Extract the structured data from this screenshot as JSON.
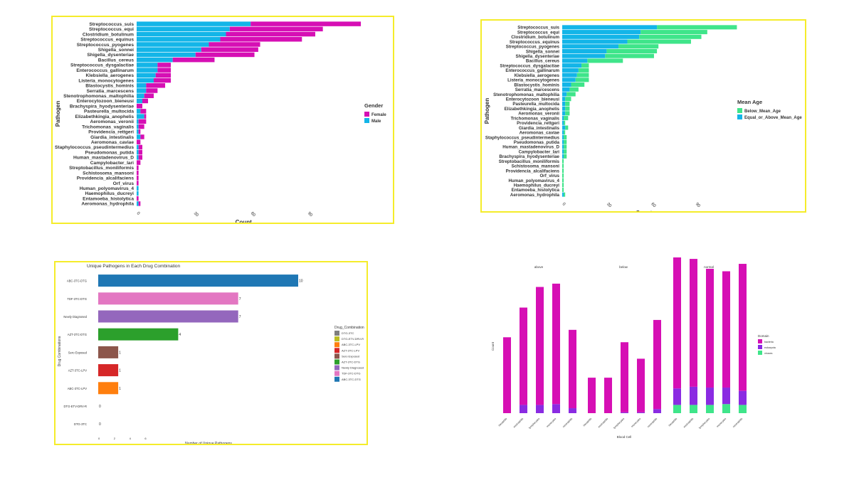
{
  "colors": {
    "female": "#d60fb4",
    "male": "#13b5e8",
    "below_mean_age": "#3fe58a",
    "equal_or_above_mean_age": "#13b5e8",
    "frame": "#f5ec2a",
    "bacteria": "#d60fb4",
    "eukaryota": "#8a2be2",
    "viruses": "#3fe58a"
  },
  "chart_data": [
    {
      "type": "bar",
      "orientation": "horizontal",
      "stacked": true,
      "categories": [
        "Streptococcus_suis",
        "Streptococcus_equi",
        "Clostridium_botulinum",
        "Streptococcus_equinus",
        "Streptococcus_pyogenes",
        "Shigella_sonnei",
        "Shigella_dysenteriae",
        "Bacillus_cereus",
        "Streptococcus_dysgalactiae",
        "Enterococcus_gallinarum",
        "Klebsiella_aerogenes",
        "Listeria_monocytogenes",
        "Blastocystis_hominis",
        "Serratia_marcescens",
        "Stenotrophomonas_maltophilia",
        "Enterocytozoon_bieneusi",
        "Brachyspira_hyodysenteriae",
        "Pasteurella_multocida",
        "Elizabethkingia_anophelis",
        "Aeromonas_veronii",
        "Trichomonas_vaginalis",
        "Providencia_rettgeri",
        "Giardia_intestinalis",
        "Aeromonas_caviae",
        "Staphylococcus_pseudintermedius",
        "Pseudomonas_putida",
        "Human_mastadenovirus_D",
        "Campylobacter_lari",
        "Streptobacillus_moniliformis",
        "Schistosoma_mansoni",
        "Providencia_alcalifaciens",
        "Orf_virus",
        "Human_polyomavirus_4",
        "Haemophilus_ducreyi",
        "Entamoeba_histolytica",
        "Aeromonas_hydrophila"
      ],
      "series": [
        {
          "name": "Male",
          "values": [
            60,
            49,
            47,
            44,
            38,
            34,
            31,
            19,
            11,
            11,
            10,
            9,
            5,
            5,
            4,
            3,
            0,
            2,
            4,
            1,
            1,
            1,
            2,
            0,
            1,
            1,
            1,
            0,
            0,
            0,
            0,
            0,
            1,
            1,
            0,
            1
          ]
        },
        {
          "name": "Female",
          "values": [
            58,
            49,
            47,
            43,
            27,
            30,
            31,
            22,
            7,
            7,
            8,
            9,
            10,
            6,
            5,
            3,
            3,
            3,
            1,
            4,
            3,
            1,
            2,
            2,
            2,
            2,
            2,
            2,
            1,
            1,
            1,
            1,
            0,
            0,
            1,
            1
          ]
        }
      ],
      "xlabel": "Count",
      "ylabel": "Pathogen",
      "xticks": [
        "0",
        "30",
        "60",
        "90"
      ],
      "xlim": [
        0,
        125
      ],
      "legend_title": "Gender",
      "legend_entries": [
        "Female",
        "Male"
      ],
      "legend_position": "right"
    },
    {
      "type": "bar",
      "orientation": "horizontal",
      "stacked": true,
      "categories": [
        "Streptococcus_suis",
        "Streptococcus_equi",
        "Clostridium_botulinum",
        "Streptococcus_equinus",
        "Streptococcus_pyogenes",
        "Shigella_sonnei",
        "Shigella_dysenteriae",
        "Bacillus_cereus",
        "Streptococcus_dysgalactiae",
        "Enterococcus_gallinarum",
        "Klebsiella_aerogenes",
        "Listeria_monocytogenes",
        "Blastocystis_hominis",
        "Serratia_marcescens",
        "Stenotrophomonas_maltophilia",
        "Enterocytozoon_bieneusi",
        "Pasteurella_multocida",
        "Elizabethkingia_anophelis",
        "Aeromonas_veronii",
        "Trichomonas_vaginalis",
        "Providencia_rettgeri",
        "Giardia_intestinalis",
        "Aeromonas_caviae",
        "Staphylococcus_pseudintermedius",
        "Pseudomonas_putida",
        "Human_mastadenovirus_D",
        "Campylobacter_lari",
        "Brachyspira_hyodysenteriae",
        "Streptobacillus_moniliformis",
        "Schistosoma_mansoni",
        "Providencia_alcalifaciens",
        "Orf_virus",
        "Human_polyomavirus_4",
        "Haemophilus_ducreyi",
        "Entamoeba_histolytica",
        "Aeromonas_hydrophila"
      ],
      "series": [
        {
          "name": "Equal_or_Above_Mean_Age",
          "values": [
            64,
            53,
            52,
            44,
            38,
            30,
            29,
            17,
            13,
            11,
            10,
            9,
            6,
            5,
            3,
            2,
            2,
            2,
            2,
            1,
            1,
            2,
            1,
            1,
            1,
            1,
            1,
            1,
            0,
            0,
            0,
            0,
            0,
            0,
            0,
            1
          ]
        },
        {
          "name": "Below_Mean_Age",
          "values": [
            54,
            45,
            42,
            43,
            27,
            34,
            33,
            24,
            5,
            7,
            8,
            9,
            9,
            6,
            6,
            4,
            3,
            3,
            3,
            3,
            1,
            2,
            1,
            2,
            2,
            2,
            2,
            2,
            1,
            1,
            1,
            1,
            1,
            1,
            1,
            1
          ]
        }
      ],
      "xlabel": "Count",
      "ylabel": "Pathogen",
      "xticks": [
        "0",
        "30",
        "60",
        "90"
      ],
      "xlim": [
        0,
        125
      ],
      "legend_title": "Mean Age",
      "legend_entries": [
        "Below_Mean_Age",
        "Equal_or_Above_Mean_Age"
      ],
      "legend_position": "right"
    },
    {
      "type": "bar",
      "orientation": "horizontal",
      "title": "Unique Pathogens in Each Drug Combination",
      "categories": [
        "ABC-3TC-DTG",
        "TDF-3TC-DTG",
        "Newly Diagnosed",
        "AZT-3TC-DTG",
        "Sero Exposed",
        "AZT-3TC-LPV",
        "ABC-3TC-LPV",
        "DTG-ETV-DRV-R",
        "DTG-3TC"
      ],
      "values": [
        10,
        7,
        7,
        4,
        1,
        1,
        1,
        0,
        0
      ],
      "data_labels": [
        "10",
        "7",
        "7",
        "4",
        "1",
        "1",
        "1",
        "0",
        "0"
      ],
      "bar_colors": [
        "#1f77b4",
        "#e377c2",
        "#9467bd",
        "#2ca02c",
        "#8c564b",
        "#d62728",
        "#ff7f0e",
        "#bcbd22",
        "#7f7f7f"
      ],
      "xlabel": "Number of Unique Pathogens",
      "ylabel": "Drug Combinations",
      "xticks": [
        "0",
        "2",
        "4",
        "6"
      ],
      "xlim": [
        0,
        10.5
      ],
      "legend_title": "Drug_Combination",
      "legend_entries": [
        {
          "label": "DTG-3TC",
          "color": "#7f7f7f"
        },
        {
          "label": "DTG-ETV-DRV-R",
          "color": "#bcbd22"
        },
        {
          "label": "ABC-3TC-LPV",
          "color": "#ff7f0e"
        },
        {
          "label": "AZT-3TC-LPV",
          "color": "#d62728"
        },
        {
          "label": "Sero Exposed",
          "color": "#8c564b"
        },
        {
          "label": "AZT-3TC-DTG",
          "color": "#2ca02c"
        },
        {
          "label": "Newly Diagnosed",
          "color": "#9467bd"
        },
        {
          "label": "TDF-3TC-DTG",
          "color": "#e377c2"
        },
        {
          "label": "ABC-3TC-DTG",
          "color": "#1f77b4"
        }
      ],
      "legend_position": "right"
    },
    {
      "type": "bar",
      "stacked": true,
      "facets": [
        {
          "label": "above",
          "categories": [
            "basophils",
            "eosinophils",
            "lymphocytes",
            "monocytes",
            "neutrophils"
          ],
          "series": [
            {
              "name": "viruses",
              "values": [
                0,
                0,
                0,
                0,
                0
              ]
            },
            {
              "name": "eukaryota",
              "values": [
                0,
                10,
                10,
                11,
                6
              ]
            },
            {
              "name": "bacteria",
              "values": [
                92,
                118,
                143,
                146,
                95
              ]
            }
          ]
        },
        {
          "label": "below",
          "categories": [
            "basophils",
            "eosinophils",
            "lymphocytes",
            "monocytes",
            "neutrophils"
          ],
          "series": [
            {
              "name": "viruses",
              "values": [
                0,
                0,
                0,
                0,
                0
              ]
            },
            {
              "name": "eukaryota",
              "values": [
                0,
                0,
                1,
                1,
                5
              ]
            },
            {
              "name": "bacteria",
              "values": [
                43,
                43,
                85,
                65,
                108
              ]
            }
          ]
        },
        {
          "label": "normal",
          "categories": [
            "basophils",
            "eosinophils",
            "lymphocytes",
            "monocytes",
            "neutrophils"
          ],
          "series": [
            {
              "name": "viruses",
              "values": [
                10,
                10,
                10,
                11,
                10
              ]
            },
            {
              "name": "eukaryota",
              "values": [
                20,
                22,
                21,
                20,
                17
              ]
            },
            {
              "name": "bacteria",
              "values": [
                162,
                155,
                144,
                141,
                154
              ]
            }
          ]
        }
      ],
      "xlabel": "Blood Cell",
      "ylabel": "Count",
      "ylim": [
        0,
        200
      ],
      "legend_title": "Domain",
      "legend_entries": [
        "bacteria",
        "eukaryota",
        "viruses"
      ],
      "legend_position": "right"
    }
  ]
}
